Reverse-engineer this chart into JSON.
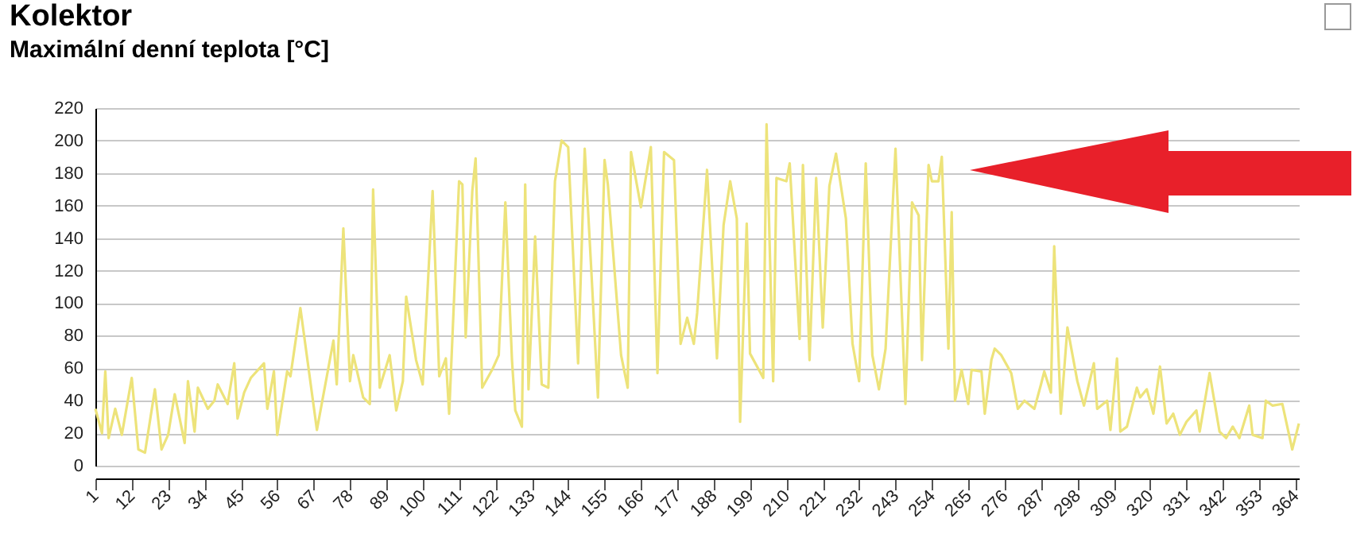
{
  "chart_data": {
    "type": "line",
    "title": "Kolektor",
    "subtitle": "Maximální denní teplota [°C]",
    "x": [
      1,
      3,
      4,
      5,
      7,
      9,
      12,
      14,
      16,
      19,
      21,
      23,
      25,
      28,
      29,
      31,
      32,
      35,
      37,
      38,
      41,
      43,
      44,
      46,
      48,
      52,
      53,
      55,
      56,
      59,
      60,
      63,
      68,
      71,
      73,
      74,
      76,
      78,
      79,
      82,
      84,
      85,
      87,
      90,
      92,
      94,
      95,
      98,
      100,
      103,
      105,
      107,
      108,
      111,
      112,
      113,
      115,
      116,
      118,
      121,
      123,
      125,
      127,
      128,
      130,
      131,
      132,
      134,
      136,
      138,
      140,
      142,
      144,
      147,
      149,
      151,
      153,
      155,
      156,
      160,
      162,
      163,
      166,
      169,
      171,
      173,
      176,
      178,
      180,
      182,
      183,
      186,
      189,
      191,
      193,
      195,
      196,
      198,
      199,
      203,
      204,
      206,
      207,
      210,
      211,
      214,
      215,
      217,
      219,
      221,
      223,
      225,
      228,
      230,
      232,
      234,
      236,
      238,
      240,
      243,
      246,
      248,
      250,
      251,
      253,
      254,
      256,
      257,
      259,
      260,
      261,
      263,
      265,
      266,
      269,
      270,
      272,
      273,
      275,
      278,
      280,
      282,
      285,
      287,
      288,
      290,
      291,
      293,
      295,
      298,
      300,
      303,
      304,
      307,
      308,
      310,
      311,
      313,
      316,
      317,
      319,
      321,
      323,
      325,
      327,
      329,
      331,
      334,
      335,
      338,
      341,
      343,
      345,
      347,
      350,
      351,
      354,
      355,
      357,
      360,
      363,
      365
    ],
    "series": [
      {
        "color": "#ede37a",
        "values": [
          35,
          20,
          58,
          17,
          35,
          19,
          54,
          10,
          8,
          47,
          10,
          19,
          44,
          14,
          52,
          21,
          48,
          35,
          40,
          50,
          38,
          63,
          29,
          45,
          54,
          63,
          35,
          58,
          19,
          58,
          55,
          97,
          22,
          55,
          77,
          50,
          146,
          52,
          68,
          42,
          38,
          170,
          48,
          68,
          34,
          52,
          104,
          65,
          50,
          169,
          55,
          66,
          32,
          175,
          173,
          79,
          169,
          189,
          48,
          59,
          68,
          162,
          65,
          34,
          24,
          173,
          47,
          141,
          50,
          48,
          175,
          200,
          196,
          63,
          195,
          120,
          42,
          188,
          173,
          68,
          48,
          193,
          159,
          196,
          57,
          193,
          188,
          75,
          91,
          75,
          94,
          182,
          66,
          148,
          175,
          152,
          27,
          149,
          69,
          54,
          210,
          52,
          177,
          175,
          186,
          78,
          185,
          65,
          177,
          85,
          172,
          192,
          152,
          75,
          52,
          186,
          68,
          47,
          72,
          195,
          38,
          162,
          154,
          65,
          185,
          175,
          175,
          190,
          72,
          156,
          40,
          59,
          38,
          59,
          58,
          32,
          65,
          72,
          68,
          57,
          35,
          40,
          35,
          50,
          58,
          45,
          135,
          32,
          85,
          52,
          37,
          63,
          35,
          40,
          22,
          66,
          21,
          24,
          48,
          42,
          47,
          32,
          61,
          26,
          32,
          19,
          27,
          34,
          21,
          57,
          21,
          17,
          24,
          17,
          37,
          19,
          17,
          40,
          37,
          38,
          10,
          26
        ]
      }
    ],
    "xlim": [
      1,
      365
    ],
    "xticks": [
      1,
      12,
      23,
      34,
      45,
      56,
      67,
      78,
      89,
      100,
      111,
      122,
      133,
      144,
      155,
      166,
      177,
      188,
      199,
      210,
      221,
      232,
      243,
      254,
      265,
      276,
      287,
      298,
      309,
      320,
      331,
      342,
      353,
      364
    ],
    "ylim": [
      0,
      220
    ],
    "yticks": [
      0,
      20,
      40,
      60,
      80,
      100,
      120,
      140,
      160,
      180,
      200,
      220
    ],
    "grid": "y",
    "marker": "none",
    "line_style": "solid"
  }
}
